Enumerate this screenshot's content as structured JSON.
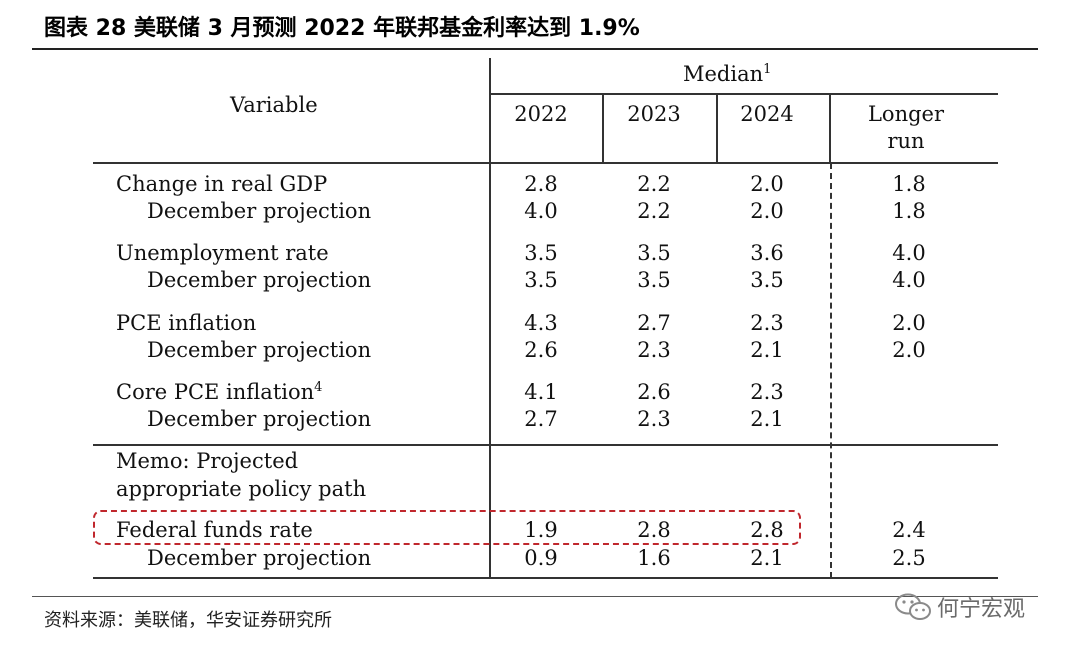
{
  "figure_title": "图表 28 美联储 3 月预测 2022 年联邦基金利率达到 1.9%",
  "source_note": "资料来源：美联储，华安证券研究所",
  "watermark": {
    "icon": "wechat-icon",
    "text": "何宁宏观"
  },
  "colors": {
    "highlight": "#c0272d",
    "rule": "#333333"
  },
  "table": {
    "variable_header": "Variable",
    "median_header": "Median",
    "median_sup": "1",
    "columns": [
      "2022",
      "2023",
      "2024",
      "Longer run"
    ],
    "longer_run_line1": "Longer",
    "longer_run_line2": "run",
    "rows": [
      {
        "label": "Change in real GDP",
        "values": [
          "2.8",
          "2.2",
          "2.0",
          "1.8"
        ]
      },
      {
        "label": "December projection",
        "values": [
          "4.0",
          "2.2",
          "2.0",
          "1.8"
        ]
      },
      {
        "label": "Unemployment rate",
        "values": [
          "3.5",
          "3.5",
          "3.6",
          "4.0"
        ]
      },
      {
        "label": "December projection",
        "values": [
          "3.5",
          "3.5",
          "3.5",
          "4.0"
        ]
      },
      {
        "label": "PCE inflation",
        "values": [
          "4.3",
          "2.7",
          "2.3",
          "2.0"
        ]
      },
      {
        "label": "December projection",
        "values": [
          "2.6",
          "2.3",
          "2.1",
          "2.0"
        ]
      },
      {
        "label": "Core PCE inflation",
        "sup": "4",
        "values": [
          "4.1",
          "2.6",
          "2.3",
          ""
        ]
      },
      {
        "label": "December projection",
        "values": [
          "2.7",
          "2.3",
          "2.1",
          ""
        ]
      }
    ],
    "memo_line1": "Memo: Projected",
    "memo_line2": "appropriate policy path",
    "fed_funds": {
      "label": "Federal funds rate",
      "values": [
        "1.9",
        "2.8",
        "2.8",
        "2.4"
      ]
    },
    "fed_funds_dec": {
      "label": "December projection",
      "values": [
        "0.9",
        "1.6",
        "2.1",
        "2.5"
      ]
    }
  }
}
